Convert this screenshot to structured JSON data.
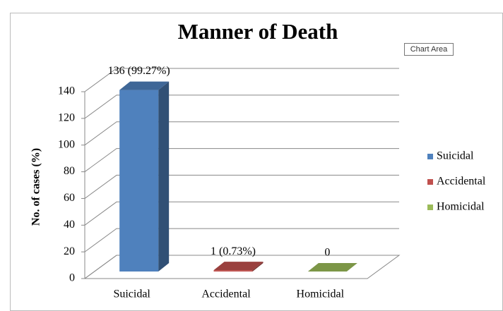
{
  "chart_data": {
    "type": "bar3d",
    "title": "Manner of Death",
    "tooltip": "Chart Area",
    "y_label": "No. of cases (%)",
    "categories": [
      "Suicidal",
      "Accidental",
      "Homicidal"
    ],
    "values": [
      136,
      1,
      0
    ],
    "value_labels": [
      "136 (99.27%)",
      "1 (0.73%)",
      "0"
    ],
    "colors": [
      "#4f81bd",
      "#c0504d",
      "#9bbb59"
    ],
    "ylim": [
      0,
      140
    ],
    "yticks": [
      0,
      20,
      40,
      60,
      80,
      100,
      120,
      140
    ],
    "grid": true,
    "legend": "right"
  }
}
